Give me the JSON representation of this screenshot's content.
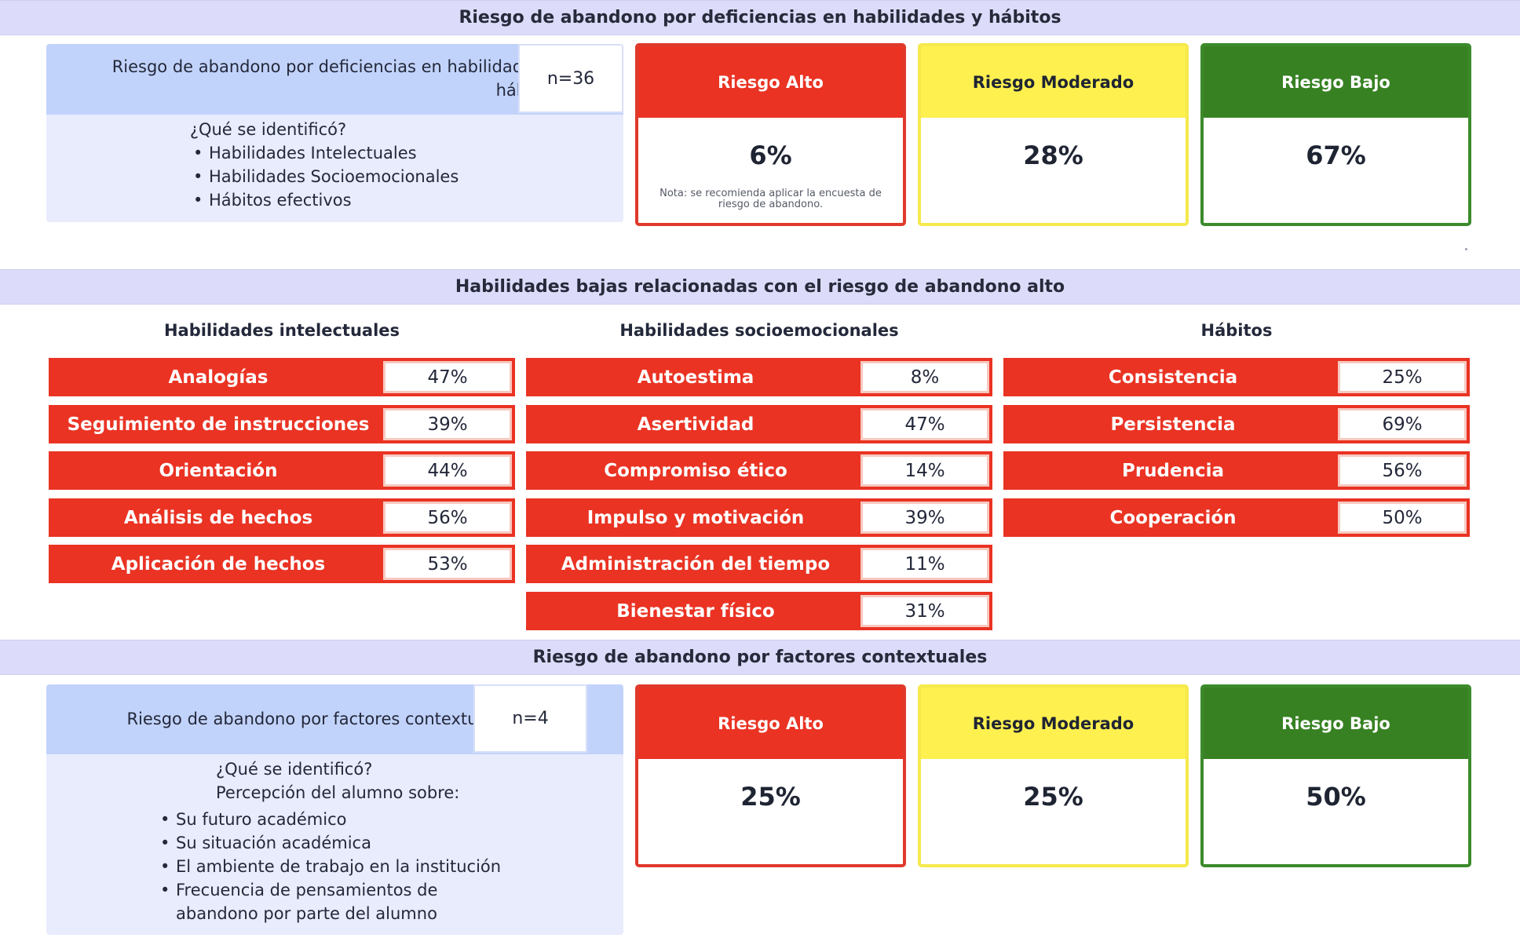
{
  "sections": {
    "habilidades_header": "Riesgo de abandono por deficiencias en habilidades y hábitos",
    "bajas_header": "Habilidades bajas relacionadas con el riesgo de abandono alto",
    "contextuales_header": "Riesgo de abandono por factores contextuales"
  },
  "habilidades_summary": {
    "title": "Riesgo de abandono por deficiencias en habilidades y hábitos",
    "n": "n=36",
    "identified_label": "¿Qué se identificó?",
    "items": [
      "Habilidades Intelectuales",
      "Habilidades Socioemocionales",
      "Hábitos efectivos"
    ]
  },
  "habilidades_risk": {
    "alto": {
      "label": "Riesgo Alto",
      "value": "6%",
      "note": "Nota: se recomienda aplicar la encuesta de riesgo de abandono."
    },
    "moderado": {
      "label": "Riesgo Moderado",
      "value": "28%"
    },
    "bajo": {
      "label": "Riesgo Bajo",
      "value": "67%"
    }
  },
  "skills": {
    "intelectuales": {
      "title": "Habilidades intelectuales",
      "items": [
        {
          "label": "Analogías",
          "value": "47%"
        },
        {
          "label": "Seguimiento de instrucciones",
          "value": "39%"
        },
        {
          "label": "Orientación",
          "value": "44%"
        },
        {
          "label": "Análisis de hechos",
          "value": "56%"
        },
        {
          "label": "Aplicación de hechos",
          "value": "53%"
        }
      ]
    },
    "socioemocionales": {
      "title": "Habilidades socioemocionales",
      "items": [
        {
          "label": "Autoestima",
          "value": "8%"
        },
        {
          "label": "Asertividad",
          "value": "47%"
        },
        {
          "label": "Compromiso ético",
          "value": "14%"
        },
        {
          "label": "Impulso y motivación",
          "value": "39%"
        },
        {
          "label": "Administración del tiempo",
          "value": "11%"
        },
        {
          "label": "Bienestar físico",
          "value": "31%"
        }
      ]
    },
    "habitos": {
      "title": "Hábitos",
      "items": [
        {
          "label": "Consistencia",
          "value": "25%"
        },
        {
          "label": "Persistencia",
          "value": "69%"
        },
        {
          "label": "Prudencia",
          "value": "56%"
        },
        {
          "label": "Cooperación",
          "value": "50%"
        }
      ]
    }
  },
  "contextual_summary": {
    "title": "Riesgo de abandono por factores contextuales",
    "n": "n=4",
    "identified_label": "¿Qué se identificó?",
    "perception_label": "Percepción del alumno sobre:",
    "items": [
      "Su futuro académico",
      "Su situación académica",
      "El ambiente de trabajo en la institución",
      "Frecuencia de pensamientos de abandono por parte del alumno"
    ]
  },
  "contextual_risk": {
    "alto": {
      "label": "Riesgo Alto",
      "value": "25%"
    },
    "moderado": {
      "label": "Riesgo Moderado",
      "value": "25%"
    },
    "bajo": {
      "label": "Riesgo Bajo",
      "value": "50%"
    }
  },
  "colors": {
    "band": "#dcdcfa",
    "alto": "#ea3323",
    "moderado": "#fdf04f",
    "bajo": "#378123",
    "info_head": "#c2d3fb",
    "info_body": "#e8ecfd"
  }
}
